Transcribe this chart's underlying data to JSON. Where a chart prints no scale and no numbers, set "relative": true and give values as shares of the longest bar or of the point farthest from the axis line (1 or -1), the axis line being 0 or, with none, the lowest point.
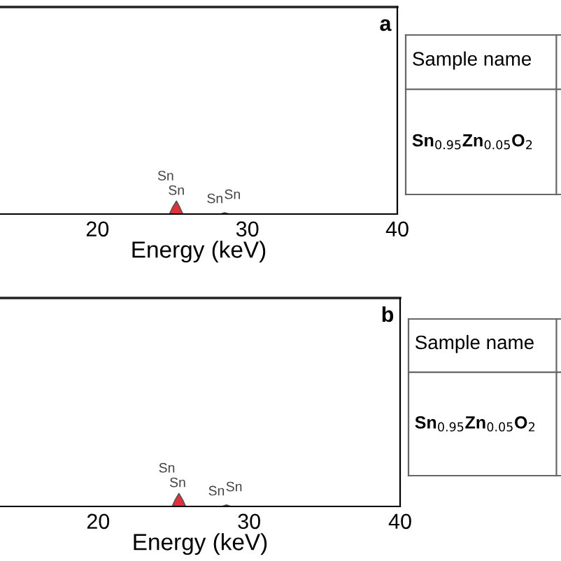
{
  "chart_data": [
    {
      "type": "area",
      "relative": true,
      "xlabel": "Energy (keV)",
      "xlim": [
        13.5,
        40
      ],
      "xticks": [
        20,
        30,
        40
      ],
      "tick_labels": "x",
      "grid": false,
      "legend": false,
      "series": [
        {
          "color": "#e0303c",
          "x": [
            13.5,
            24.8,
            25.0,
            25.27,
            25.5,
            25.7,
            28.2,
            28.48,
            28.8,
            40
          ],
          "values": [
            0,
            0,
            0.5,
            1,
            0.5,
            0,
            0,
            0.1,
            0,
            0
          ]
        }
      ],
      "annotations": [
        "a",
        "Sn",
        "Sn",
        "Sn",
        "Sn"
      ]
    },
    {
      "type": "other",
      "annotations": [
        "Sample name",
        "Sn$_{0.95}$Zn$_{0.05}$O$_{2}$"
      ]
    },
    {
      "type": "area",
      "relative": true,
      "xlabel": "Energy (keV)",
      "xlim": [
        13.5,
        40
      ],
      "xticks": [
        20,
        30,
        40
      ],
      "tick_labels": "x",
      "grid": false,
      "legend": false,
      "series": [
        {
          "color": "#e0303c",
          "x": [
            13.5,
            24.9,
            25.1,
            25.35,
            25.6,
            25.8,
            28.2,
            28.5,
            28.8,
            40
          ],
          "values": [
            0,
            0,
            0.5,
            1,
            0.5,
            0,
            0,
            0.12,
            0,
            0
          ]
        }
      ],
      "annotations": [
        "b",
        "Sn",
        "Sn",
        "Sn",
        "Sn"
      ]
    },
    {
      "type": "other",
      "annotations": [
        "Sample name",
        "Sn$_{0.95}$Zn$_{0.05}$O$_{2}$"
      ]
    }
  ]
}
